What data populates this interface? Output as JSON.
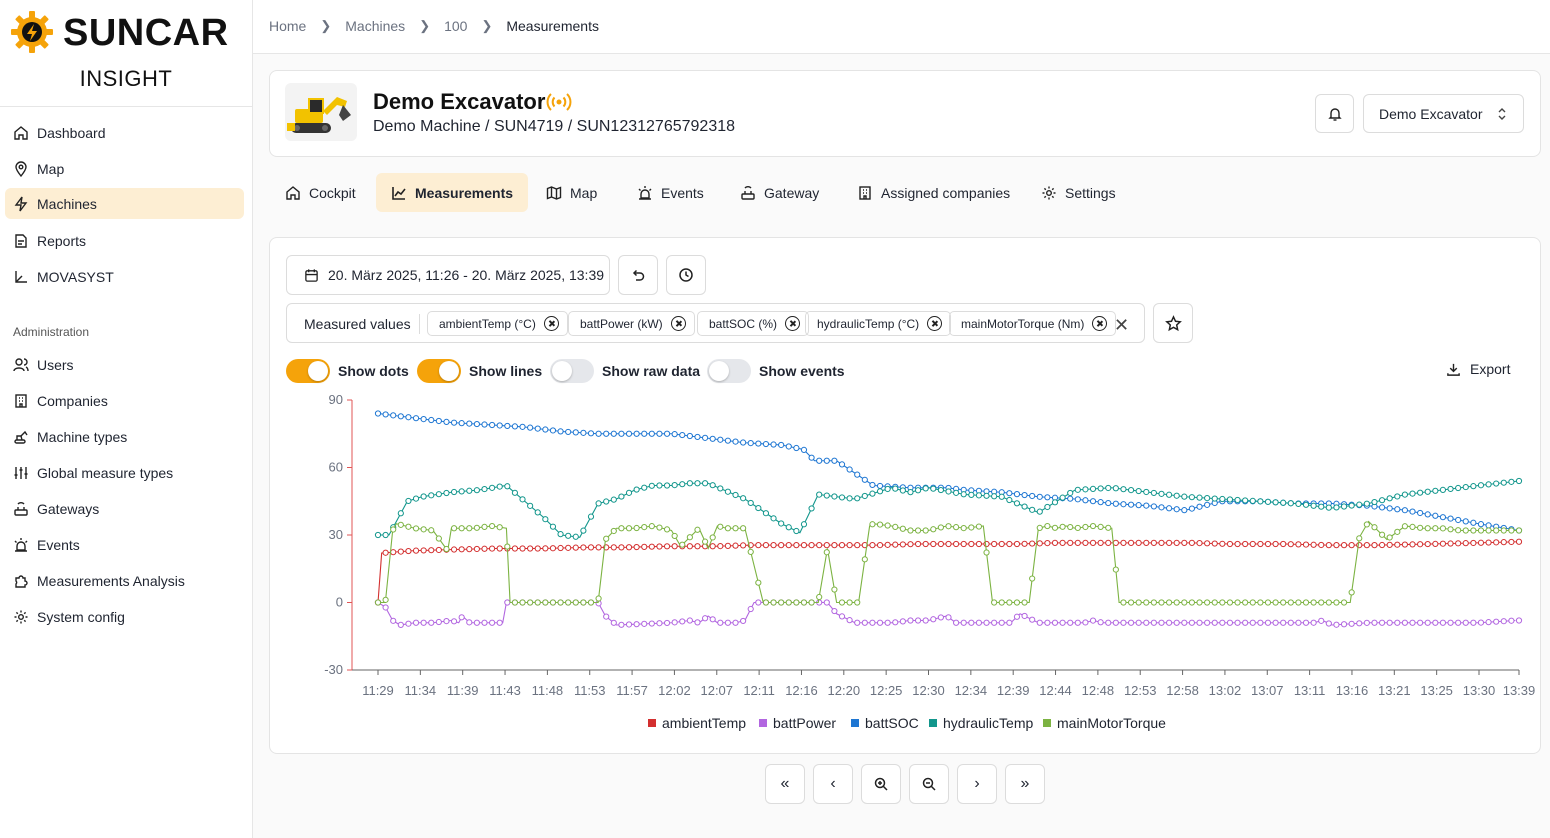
{
  "brand": {
    "name": "SUNCAR",
    "sub": "INSIGHT"
  },
  "sidebar": {
    "items": [
      {
        "label": "Dashboard",
        "icon": "home-icon"
      },
      {
        "label": "Map",
        "icon": "pin-icon"
      },
      {
        "label": "Machines",
        "icon": "bolt-icon",
        "active": true
      },
      {
        "label": "Reports",
        "icon": "report-icon"
      },
      {
        "label": "MOVASYST",
        "icon": "axes-icon"
      }
    ],
    "section_label": "Administration",
    "admin_items": [
      {
        "label": "Users",
        "icon": "users-icon"
      },
      {
        "label": "Companies",
        "icon": "building-icon"
      },
      {
        "label": "Machine types",
        "icon": "excavator-icon"
      },
      {
        "label": "Global measure types",
        "icon": "sliders-icon"
      },
      {
        "label": "Gateways",
        "icon": "router-icon"
      },
      {
        "label": "Events",
        "icon": "siren-icon"
      },
      {
        "label": "Measurements Analysis",
        "icon": "puzzle-icon"
      },
      {
        "label": "System config",
        "icon": "gear-icon"
      }
    ]
  },
  "breadcrumb": [
    "Home",
    "Machines",
    "100",
    "Measurements"
  ],
  "machine": {
    "name": "Demo Excavator",
    "subtitle": "Demo Machine / SUN4719 / SUN12312765792318",
    "selector_value": "Demo Excavator"
  },
  "tabs": [
    {
      "label": "Cockpit",
      "icon": "home-icon"
    },
    {
      "label": "Measurements",
      "icon": "chart-icon",
      "active": true
    },
    {
      "label": "Map",
      "icon": "map-icon"
    },
    {
      "label": "Events",
      "icon": "siren-icon"
    },
    {
      "label": "Gateway",
      "icon": "router-icon"
    },
    {
      "label": "Assigned companies",
      "icon": "building-icon"
    },
    {
      "label": "Settings",
      "icon": "gear-icon"
    }
  ],
  "controls": {
    "date_range": "20. März 2025, 11:26 - 20. März 2025, 13:39",
    "measured_values_label": "Measured values",
    "chips": [
      "ambientTemp (°C)",
      "battPower (kW)",
      "battSOC (%)",
      "hydraulicTemp (°C)",
      "mainMotorTorque (Nm)"
    ],
    "toggles": [
      {
        "label": "Show dots",
        "on": true
      },
      {
        "label": "Show lines",
        "on": true
      },
      {
        "label": "Show raw data",
        "on": false
      },
      {
        "label": "Show events",
        "on": false
      }
    ],
    "export_label": "Export"
  },
  "chart_data": {
    "type": "line",
    "title": "",
    "xlabel": "",
    "ylabel": "",
    "ylim": [
      -30,
      90
    ],
    "yticks": [
      -30,
      0,
      30,
      60,
      90
    ],
    "xticks": [
      "11:29",
      "11:34",
      "11:39",
      "11:43",
      "11:48",
      "11:53",
      "11:57",
      "12:02",
      "12:07",
      "12:11",
      "12:16",
      "12:20",
      "12:25",
      "12:30",
      "12:34",
      "12:39",
      "12:44",
      "12:48",
      "12:53",
      "12:58",
      "13:02",
      "13:07",
      "13:11",
      "13:16",
      "13:21",
      "13:25",
      "13:30",
      "13:39"
    ],
    "grid": false,
    "legend": "bottom",
    "series": [
      {
        "name": "ambientTemp",
        "color": "#d32f2f",
        "x": [
          0,
          2,
          19,
          39,
          64,
          89,
          114,
          134,
          159,
          184,
          204,
          229,
          254,
          273,
          294,
          324,
          349,
          369,
          394,
          414,
          444,
          464,
          484,
          494,
          517,
          545,
          574,
          599,
          622
        ],
        "values": [
          0,
          22,
          23,
          23.5,
          24,
          24,
          24.5,
          24.5,
          25,
          25,
          25.5,
          25.5,
          25.5,
          25.5,
          26,
          26,
          26,
          26.5,
          26.5,
          26.5,
          26.5,
          26,
          26,
          26,
          25.5,
          25.5,
          26,
          26.5,
          27
        ]
      },
      {
        "name": "battPower",
        "color": "#b266e0",
        "x": [
          0,
          4,
          8,
          12,
          20,
          30,
          40,
          44,
          46,
          50,
          60,
          68,
          70,
          120,
          124,
          130,
          160,
          170,
          175,
          180,
          185,
          195,
          200,
          205,
          245,
          250,
          260,
          265,
          280,
          290,
          300,
          310,
          315,
          345,
          350,
          360,
          375,
          385,
          390,
          395,
          400,
          410,
          420,
          430,
          440,
          460,
          470,
          480,
          510,
          515,
          520,
          540,
          560,
          580,
          600,
          620
        ],
        "values": [
          0,
          -2,
          -8,
          -10,
          -9,
          -9,
          -8,
          -9,
          -6,
          -9,
          -9,
          -9,
          0,
          0,
          -6,
          -10,
          -9,
          -8,
          -9,
          -6,
          -9,
          -9,
          -8,
          0,
          0,
          -5,
          -9,
          -9,
          -9,
          -8,
          -8,
          -6,
          -9,
          -9,
          -5,
          -9,
          -9,
          -9,
          -8,
          -9,
          -9,
          -9,
          -9,
          -9,
          -9,
          -9,
          -9,
          -9,
          -9,
          -8,
          -10,
          -9,
          -9,
          -9,
          -9,
          -8
        ]
      },
      {
        "name": "battSOC",
        "color": "#1e76d2",
        "x": [
          0,
          20,
          40,
          60,
          80,
          100,
          120,
          140,
          160,
          180,
          200,
          220,
          232,
          238,
          250,
          270,
          290,
          310,
          320,
          340,
          360,
          380,
          400,
          420,
          440,
          460,
          480,
          500,
          520,
          540,
          560,
          580,
          600,
          622
        ],
        "values": [
          84,
          82,
          80,
          79,
          78,
          76,
          75,
          75,
          75,
          73,
          71,
          70,
          68,
          63,
          63,
          52,
          51,
          51,
          50,
          49,
          47,
          46,
          44,
          43,
          41,
          45,
          45,
          44,
          44,
          43,
          41,
          38,
          35,
          32
        ]
      },
      {
        "name": "hydraulicTemp",
        "color": "#12968c",
        "x": [
          0,
          6,
          16,
          24,
          40,
          55,
          70,
          80,
          90,
          100,
          110,
          120,
          130,
          140,
          150,
          160,
          170,
          180,
          200,
          220,
          230,
          240,
          260,
          280,
          290,
          300,
          320,
          340,
          360,
          380,
          400,
          420,
          440,
          460,
          480,
          500,
          520,
          540,
          560,
          580,
          600,
          622
        ],
        "values": [
          30,
          30,
          45,
          47,
          49,
          50,
          52,
          45,
          38,
          30,
          29,
          44,
          46,
          50,
          52,
          52,
          53,
          53,
          46,
          35,
          31,
          48,
          46,
          51,
          49,
          51,
          48,
          47,
          40,
          50,
          51,
          49,
          47,
          46,
          45,
          44,
          42,
          44,
          48,
          50,
          52,
          54
        ]
      },
      {
        "name": "mainMotorTorque",
        "color": "#7cb342",
        "x": [
          0,
          4,
          8,
          10,
          20,
          30,
          38,
          40,
          52,
          62,
          70,
          72,
          120,
          124,
          130,
          140,
          150,
          160,
          165,
          175,
          180,
          185,
          190,
          200,
          210,
          220,
          222,
          240,
          245,
          250,
          262,
          268,
          270,
          280,
          290,
          300,
          310,
          320,
          330,
          335,
          340,
          345,
          355,
          360,
          365,
          370,
          375,
          380,
          390,
          400,
          404,
          510,
          520,
          530,
          535,
          540,
          550,
          560,
          570,
          580,
          590,
          600,
          622
        ],
        "values": [
          0,
          0,
          32,
          35,
          33,
          32,
          23,
          33,
          33,
          34,
          33,
          0,
          0,
          28,
          33,
          33,
          34,
          32,
          25,
          33,
          24,
          34,
          33,
          33,
          0,
          0,
          0,
          0,
          24,
          0,
          0,
          34,
          35,
          34,
          32,
          32,
          34,
          33,
          34,
          0,
          0,
          0,
          0,
          33,
          34,
          33,
          34,
          33,
          34,
          33,
          0,
          0,
          0,
          0,
          29,
          36,
          28,
          34,
          33,
          33,
          32,
          32,
          32
        ]
      }
    ]
  }
}
